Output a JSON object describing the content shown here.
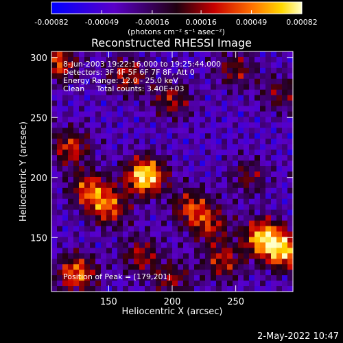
{
  "chart_data": {
    "type": "heatmap",
    "title": "Reconstructed RHESSI Image",
    "xlabel": "Heliocentric X (arcsec)",
    "ylabel": "Heliocentric Y (arcsec)",
    "xlim": [
      105,
      295
    ],
    "ylim": [
      105,
      305
    ],
    "x_ticks": [
      150,
      200,
      250
    ],
    "y_ticks": [
      150,
      200,
      250,
      300
    ],
    "colorbar": {
      "min": -0.00082,
      "max": 0.00082,
      "tick_values": [
        -0.00082,
        -0.00049,
        -0.00016,
        0.00016,
        0.00049,
        0.00082
      ],
      "tick_labels": [
        "-0.00082",
        "-0.00049",
        "-0.00016",
        "0.00016",
        "0.00049",
        "0.00082"
      ],
      "unit_label": "(photons cm⁻² s⁻¹ asec⁻²)"
    },
    "annotations": [
      "8-Jun-2003 19:22:16.000 to 19:25:44.000",
      "Detectors: 3F 4F 5F 6F 7F 8F, Att 0",
      "Energy Range: 12.0 - 25.0 keV",
      "Clean     Total counts: 3.40E+03"
    ],
    "peak_label": "Position of Peak = [179,201]",
    "peak": {
      "x": 179,
      "y": 201
    },
    "sources": [
      {
        "x": 179,
        "y": 201,
        "strength": 1.0
      },
      {
        "x": 272,
        "y": 150,
        "strength": 0.85
      },
      {
        "x": 288,
        "y": 138,
        "strength": 0.75
      },
      {
        "x": 125,
        "y": 120,
        "strength": 0.7
      },
      {
        "x": 150,
        "y": 175,
        "strength": 0.6
      },
      {
        "x": 135,
        "y": 190,
        "strength": 0.6
      },
      {
        "x": 120,
        "y": 225,
        "strength": 0.55
      },
      {
        "x": 110,
        "y": 295,
        "strength": 0.6
      },
      {
        "x": 165,
        "y": 285,
        "strength": 0.5
      },
      {
        "x": 200,
        "y": 265,
        "strength": 0.45
      },
      {
        "x": 215,
        "y": 175,
        "strength": 0.55
      },
      {
        "x": 230,
        "y": 160,
        "strength": 0.45
      },
      {
        "x": 240,
        "y": 130,
        "strength": 0.5
      },
      {
        "x": 175,
        "y": 135,
        "strength": 0.45
      },
      {
        "x": 200,
        "y": 115,
        "strength": 0.4
      },
      {
        "x": 250,
        "y": 290,
        "strength": 0.4
      },
      {
        "x": 285,
        "y": 270,
        "strength": 0.35
      },
      {
        "x": 260,
        "y": 200,
        "strength": 0.35
      }
    ],
    "grid": false,
    "legend": "none"
  },
  "footer": {
    "timestamp": "2-May-2022 10:47"
  }
}
